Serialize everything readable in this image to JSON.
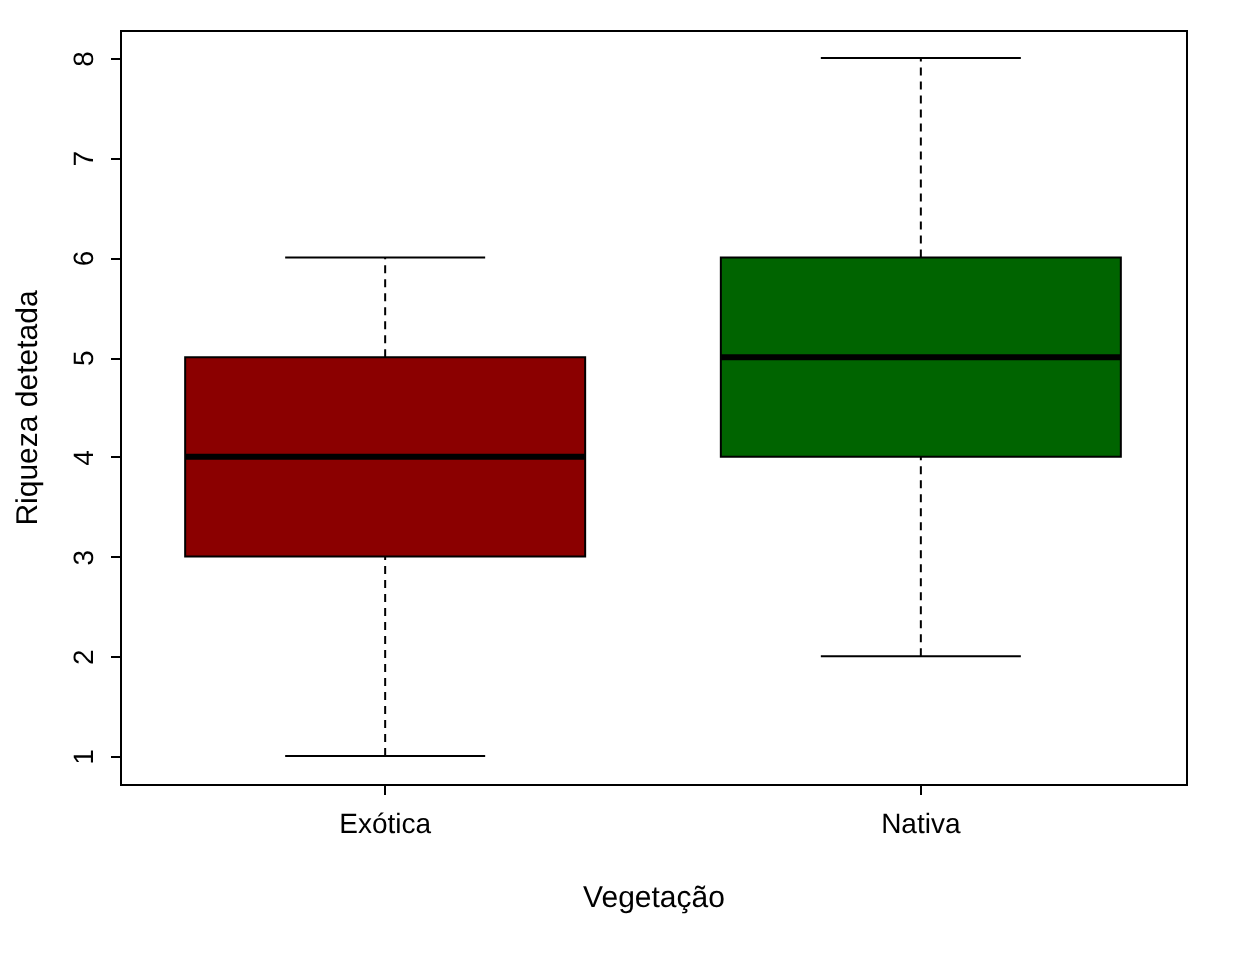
{
  "chart_data": {
    "type": "box",
    "xlabel": "Vegetação",
    "ylabel": "Riqueza detetada",
    "categories": [
      "Exótica",
      "Nativa"
    ],
    "colors": [
      "#8b0000",
      "#006400"
    ],
    "boxes": [
      {
        "low": 1,
        "q1": 3,
        "median": 4,
        "q3": 5,
        "high": 6
      },
      {
        "low": 2,
        "q1": 4,
        "median": 5,
        "q3": 6,
        "high": 8
      }
    ],
    "ylim": [
      0.72,
      8.28
    ],
    "yticks": [
      1,
      2,
      3,
      4,
      5,
      6,
      7,
      8
    ],
    "grid": false
  }
}
